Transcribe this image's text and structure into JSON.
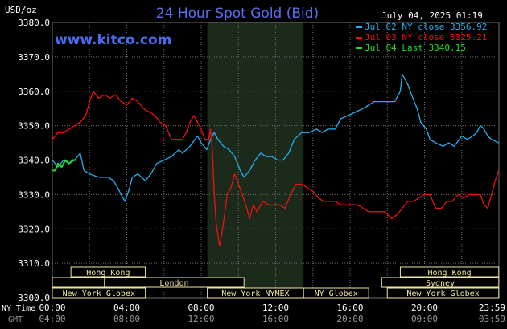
{
  "header": {
    "unit_label": "USD/oz",
    "title": "24 Hour Spot Gold (Bid)",
    "watermark": "www.kitco.com",
    "date_label": "July 04, 2025 01:19"
  },
  "colors": {
    "background": "#000000",
    "grid": "#6e6e6e",
    "title": "#5a6ef0",
    "watermark": "#4a6cf0",
    "session_shade": "#1c2a1c",
    "session_box": "#f0e6a0",
    "jul02": "#22b0f0",
    "jul03": "#ee1111",
    "jul04": "#22dd22"
  },
  "chart_data": {
    "type": "line",
    "title": "24 Hour Spot Gold (Bid)",
    "ylabel": "USD/oz",
    "xlabel": "",
    "ylim": [
      3300,
      3380
    ],
    "y_ticks": [
      "3300.0",
      "3310.0",
      "3320.0",
      "3330.0",
      "3340.0",
      "3350.0",
      "3360.0",
      "3370.0",
      "3380.0"
    ],
    "xlim": [
      0,
      24
    ],
    "x_ticks_ny": [
      "00:00",
      "04:00",
      "08:00",
      "12:00",
      "16:00",
      "20:00",
      "23:59"
    ],
    "x_ticks_gmt": [
      "04:00",
      "08:00",
      "12:00",
      "16:00",
      "20:00",
      "00:00",
      "03:59"
    ],
    "x_axis_row_labels": [
      "NY Time",
      "GMT"
    ],
    "grid": true,
    "legend_position": "top-right",
    "legend": [
      {
        "text": "Jul 02 NY close 3356.92",
        "color": "#22b0f0"
      },
      {
        "text": "Jul 03 NY close 3325.21",
        "color": "#ee1111"
      },
      {
        "text": "Jul 04 Last 3340.15",
        "color": "#22dd22"
      }
    ],
    "shaded_region": [
      8.33,
      13.5
    ],
    "sessions": [
      {
        "name": "Hong Kong",
        "start": 1.0,
        "end": 5.0,
        "row": 0
      },
      {
        "name": "Hong Kong",
        "start": 18.7,
        "end": 23.99,
        "row": 0
      },
      {
        "name": "London",
        "start": 0.0,
        "end": 7.9,
        "row": 1
      },
      {
        "name": "London",
        "start": 2.8,
        "end": 10.3,
        "row": 1
      },
      {
        "name": "Sydney",
        "start": 17.7,
        "end": 23.99,
        "row": 1
      },
      {
        "name": "New York Globex",
        "start": 0.0,
        "end": 5.0,
        "row": 2
      },
      {
        "name": "New York Globex",
        "start": 18.0,
        "end": 23.99,
        "row": 2
      },
      {
        "name": "New York NYMEX",
        "start": 8.33,
        "end": 13.5,
        "row": 2
      },
      {
        "name": "NY Globex",
        "start": 13.5,
        "end": 17.0,
        "row": 2
      }
    ],
    "series": [
      {
        "name": "Jul 02 NY close 3356.92",
        "color": "#22b0f0",
        "points": [
          [
            0.0,
            3340
          ],
          [
            0.3,
            3338
          ],
          [
            0.6,
            3340
          ],
          [
            0.9,
            3339
          ],
          [
            1.2,
            3340
          ],
          [
            1.5,
            3342
          ],
          [
            1.7,
            3337
          ],
          [
            2.0,
            3336
          ],
          [
            2.5,
            3335
          ],
          [
            3.0,
            3335
          ],
          [
            3.3,
            3334
          ],
          [
            3.6,
            3331
          ],
          [
            3.9,
            3328
          ],
          [
            4.1,
            3331
          ],
          [
            4.3,
            3335
          ],
          [
            4.6,
            3336
          ],
          [
            5.0,
            3334
          ],
          [
            5.3,
            3336
          ],
          [
            5.6,
            3339
          ],
          [
            6.0,
            3340
          ],
          [
            6.4,
            3341
          ],
          [
            6.8,
            3343
          ],
          [
            7.0,
            3342
          ],
          [
            7.4,
            3344
          ],
          [
            7.8,
            3347
          ],
          [
            8.0,
            3345
          ],
          [
            8.3,
            3343
          ],
          [
            8.5,
            3346
          ],
          [
            8.7,
            3348
          ],
          [
            8.9,
            3346
          ],
          [
            9.2,
            3344
          ],
          [
            9.5,
            3343
          ],
          [
            9.8,
            3341
          ],
          [
            10.1,
            3337
          ],
          [
            10.3,
            3335
          ],
          [
            10.6,
            3337
          ],
          [
            10.9,
            3340
          ],
          [
            11.2,
            3342
          ],
          [
            11.5,
            3341
          ],
          [
            11.8,
            3341
          ],
          [
            12.1,
            3340
          ],
          [
            12.4,
            3340
          ],
          [
            12.7,
            3342
          ],
          [
            13.0,
            3346
          ],
          [
            13.4,
            3348
          ],
          [
            13.8,
            3348
          ],
          [
            14.2,
            3349
          ],
          [
            14.5,
            3348
          ],
          [
            14.8,
            3349
          ],
          [
            15.2,
            3349
          ],
          [
            15.5,
            3352
          ],
          [
            15.9,
            3353
          ],
          [
            16.3,
            3354
          ],
          [
            16.7,
            3355
          ],
          [
            17.0,
            3356
          ],
          [
            17.3,
            3357
          ],
          [
            17.6,
            3357
          ],
          [
            18.0,
            3357
          ],
          [
            18.4,
            3357
          ],
          [
            18.7,
            3360
          ],
          [
            18.8,
            3365
          ],
          [
            19.1,
            3362
          ],
          [
            19.3,
            3359
          ],
          [
            19.6,
            3355
          ],
          [
            19.8,
            3351
          ],
          [
            20.1,
            3349
          ],
          [
            20.3,
            3346
          ],
          [
            20.6,
            3345
          ],
          [
            21.0,
            3344
          ],
          [
            21.3,
            3345
          ],
          [
            21.6,
            3344
          ],
          [
            22.0,
            3347
          ],
          [
            22.3,
            3346
          ],
          [
            22.6,
            3347
          ],
          [
            22.8,
            3348
          ],
          [
            23.0,
            3350
          ],
          [
            23.2,
            3349
          ],
          [
            23.4,
            3347
          ],
          [
            23.6,
            3346
          ],
          [
            23.99,
            3345
          ]
        ]
      },
      {
        "name": "Jul 03 NY close 3325.21",
        "color": "#ee1111",
        "points": [
          [
            0.0,
            3346
          ],
          [
            0.3,
            3348
          ],
          [
            0.6,
            3348
          ],
          [
            0.9,
            3349
          ],
          [
            1.2,
            3350
          ],
          [
            1.5,
            3351
          ],
          [
            1.8,
            3353
          ],
          [
            2.0,
            3357
          ],
          [
            2.2,
            3360
          ],
          [
            2.5,
            3358
          ],
          [
            2.8,
            3359
          ],
          [
            3.1,
            3358
          ],
          [
            3.4,
            3359
          ],
          [
            3.7,
            3357
          ],
          [
            4.0,
            3356
          ],
          [
            4.3,
            3358
          ],
          [
            4.6,
            3357
          ],
          [
            4.9,
            3355
          ],
          [
            5.2,
            3354
          ],
          [
            5.5,
            3353
          ],
          [
            5.8,
            3351
          ],
          [
            6.1,
            3350
          ],
          [
            6.4,
            3346
          ],
          [
            6.7,
            3346
          ],
          [
            7.0,
            3346
          ],
          [
            7.2,
            3348
          ],
          [
            7.4,
            3351
          ],
          [
            7.6,
            3353
          ],
          [
            7.8,
            3351
          ],
          [
            8.0,
            3349
          ],
          [
            8.2,
            3346
          ],
          [
            8.4,
            3346
          ],
          [
            8.5,
            3349
          ],
          [
            8.6,
            3343
          ],
          [
            8.7,
            3330
          ],
          [
            8.8,
            3322
          ],
          [
            8.9,
            3318
          ],
          [
            9.0,
            3315
          ],
          [
            9.2,
            3322
          ],
          [
            9.4,
            3330
          ],
          [
            9.6,
            3332
          ],
          [
            9.8,
            3336
          ],
          [
            10.0,
            3333
          ],
          [
            10.2,
            3330
          ],
          [
            10.4,
            3327
          ],
          [
            10.6,
            3323
          ],
          [
            10.8,
            3327
          ],
          [
            11.0,
            3325
          ],
          [
            11.3,
            3328
          ],
          [
            11.6,
            3327
          ],
          [
            11.9,
            3327
          ],
          [
            12.2,
            3327
          ],
          [
            12.5,
            3326
          ],
          [
            12.8,
            3330
          ],
          [
            13.1,
            3333
          ],
          [
            13.4,
            3333
          ],
          [
            13.7,
            3332
          ],
          [
            14.0,
            3331
          ],
          [
            14.3,
            3329
          ],
          [
            14.6,
            3328
          ],
          [
            14.9,
            3328
          ],
          [
            15.2,
            3328
          ],
          [
            15.5,
            3327
          ],
          [
            15.8,
            3327
          ],
          [
            16.1,
            3327
          ],
          [
            16.4,
            3327
          ],
          [
            16.7,
            3326
          ],
          [
            17.0,
            3325
          ],
          [
            17.3,
            3325
          ],
          [
            17.6,
            3325
          ],
          [
            17.9,
            3325
          ],
          [
            18.2,
            3323
          ],
          [
            18.5,
            3324
          ],
          [
            18.8,
            3326
          ],
          [
            19.1,
            3328
          ],
          [
            19.4,
            3328
          ],
          [
            19.7,
            3329
          ],
          [
            20.0,
            3330
          ],
          [
            20.3,
            3330
          ],
          [
            20.6,
            3326
          ],
          [
            20.9,
            3326
          ],
          [
            21.2,
            3328
          ],
          [
            21.5,
            3328
          ],
          [
            21.8,
            3330
          ],
          [
            22.1,
            3329
          ],
          [
            22.4,
            3330
          ],
          [
            22.7,
            3330
          ],
          [
            23.0,
            3330
          ],
          [
            23.2,
            3327
          ],
          [
            23.4,
            3326
          ],
          [
            23.6,
            3330
          ],
          [
            23.8,
            3334
          ],
          [
            23.99,
            3337
          ]
        ]
      },
      {
        "name": "Jul 04 Last 3340.15",
        "color": "#22dd22",
        "points": [
          [
            0.0,
            3337
          ],
          [
            0.15,
            3337
          ],
          [
            0.3,
            3339
          ],
          [
            0.5,
            3338
          ],
          [
            0.7,
            3340
          ],
          [
            0.9,
            3339
          ],
          [
            1.1,
            3340
          ],
          [
            1.3,
            3340
          ]
        ]
      }
    ]
  }
}
